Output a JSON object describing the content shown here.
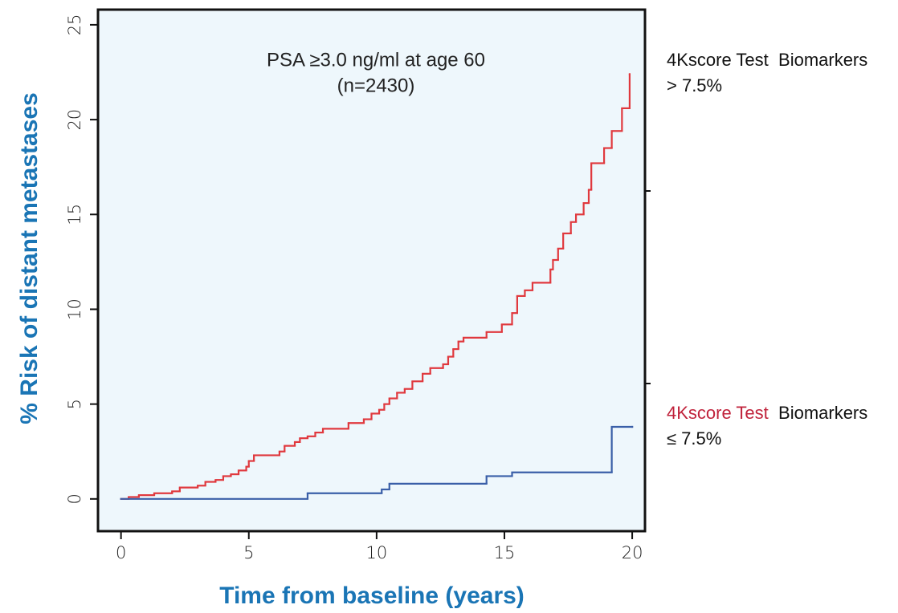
{
  "chart_data": {
    "type": "step",
    "annotation": [
      "PSA ≥3.0 ng/ml at age 60",
      "(n=2430)"
    ],
    "xlabel": "Time from baseline (years)",
    "ylabel": "% Risk of distant metastases",
    "xlim": [
      -0.9,
      20.5
    ],
    "ylim": [
      -1.7,
      25.8
    ],
    "xticks": [
      0,
      5,
      10,
      15,
      20
    ],
    "yticks": [
      0,
      5,
      10,
      15,
      20,
      25
    ],
    "background": "#eef7fc",
    "series": [
      {
        "name": "> 7.5%",
        "label_prefix": [
          "4Kscore Test",
          "Biomarkers"
        ],
        "prefix_color": "#111111",
        "color": "#e0393e",
        "x": [
          0,
          0.3,
          0.7,
          1.3,
          2,
          2.3,
          3,
          3.3,
          3.7,
          4,
          4.3,
          4.6,
          4.9,
          5,
          5.2,
          6.2,
          6.4,
          6.8,
          7,
          7.3,
          7.6,
          7.9,
          8.9,
          9.5,
          9.8,
          10.1,
          10.3,
          10.5,
          10.8,
          11.1,
          11.4,
          11.8,
          12.1,
          12.6,
          12.8,
          13,
          13.2,
          13.4,
          14.3,
          14.9,
          15.3,
          15.5,
          15.8,
          16.1,
          16.8,
          16.9,
          17.1,
          17.3,
          17.6,
          17.8,
          18.1,
          18.3,
          18.4,
          18.9,
          19.2,
          19.6,
          19.9
        ],
        "values": [
          0,
          0.1,
          0.2,
          0.3,
          0.4,
          0.6,
          0.7,
          0.9,
          1.0,
          1.2,
          1.3,
          1.5,
          1.7,
          2.0,
          2.3,
          2.5,
          2.8,
          3.0,
          3.2,
          3.3,
          3.5,
          3.7,
          4.0,
          4.2,
          4.5,
          4.7,
          5.0,
          5.3,
          5.6,
          5.8,
          6.2,
          6.6,
          6.9,
          7.1,
          7.5,
          7.9,
          8.3,
          8.5,
          8.8,
          9.2,
          9.8,
          10.7,
          11.0,
          11.4,
          12.1,
          12.6,
          13.2,
          14.0,
          14.6,
          15.0,
          15.6,
          16.3,
          17.7,
          18.5,
          19.4,
          20.6,
          22.4
        ]
      },
      {
        "name": "≤ 7.5%",
        "label_prefix": [
          "4Kscore Test",
          "Biomarkers"
        ],
        "prefix_color": "#c0223b",
        "color": "#3a5fa8",
        "x": [
          0,
          7.3,
          10.2,
          10.5,
          14.3,
          15.3,
          19.2,
          20
        ],
        "values": [
          0,
          0.3,
          0.5,
          0.8,
          1.2,
          1.4,
          3.8,
          3.8
        ]
      }
    ]
  }
}
